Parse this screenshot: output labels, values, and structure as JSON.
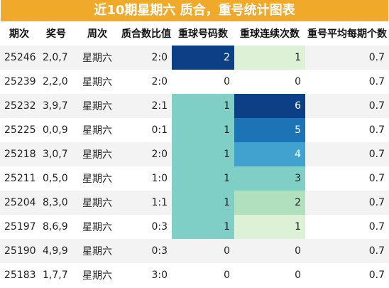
{
  "title": "近10期星期六 质合，重号统计图表",
  "headers": [
    "期次",
    "奖号",
    "周次",
    "质合数比值",
    "重球号码数",
    "重球连续次数",
    "重号平均每期个数"
  ],
  "rows": [
    {
      "period": "25246",
      "numbers": "2,0,7",
      "weekday": "星期六",
      "ratio": "2:0",
      "repeat": "2",
      "consecutive": "1",
      "avg": "0.7",
      "repeat_bg": "#0b3f86",
      "repeat_fg": "#ffffff",
      "cons_bg": "#dcf1d6",
      "cons_fg": "#222222"
    },
    {
      "period": "25239",
      "numbers": "2,2,0",
      "weekday": "星期六",
      "ratio": "2:0",
      "repeat": "0",
      "consecutive": "0",
      "avg": "0.7",
      "repeat_bg": "",
      "repeat_fg": "#222222",
      "cons_bg": "",
      "cons_fg": "#222222"
    },
    {
      "period": "25232",
      "numbers": "3,9,7",
      "weekday": "星期六",
      "ratio": "2:1",
      "repeat": "1",
      "consecutive": "6",
      "avg": "0.7",
      "repeat_bg": "#7fcfc6",
      "repeat_fg": "#222222",
      "cons_bg": "#0b3f86",
      "cons_fg": "#ffffff"
    },
    {
      "period": "25225",
      "numbers": "0,0,9",
      "weekday": "星期六",
      "ratio": "0:1",
      "repeat": "1",
      "consecutive": "5",
      "avg": "0.7",
      "repeat_bg": "#7fcfc6",
      "repeat_fg": "#222222",
      "cons_bg": "#1c73b6",
      "cons_fg": "#ffffff"
    },
    {
      "period": "25218",
      "numbers": "3,0,7",
      "weekday": "星期六",
      "ratio": "2:0",
      "repeat": "1",
      "consecutive": "4",
      "avg": "0.7",
      "repeat_bg": "#7fcfc6",
      "repeat_fg": "#222222",
      "cons_bg": "#41a2d0",
      "cons_fg": "#ffffff"
    },
    {
      "period": "25211",
      "numbers": "0,5,0",
      "weekday": "星期六",
      "ratio": "1:0",
      "repeat": "1",
      "consecutive": "3",
      "avg": "0.7",
      "repeat_bg": "#7fcfc6",
      "repeat_fg": "#222222",
      "cons_bg": "#7fcfc6",
      "cons_fg": "#222222"
    },
    {
      "period": "25204",
      "numbers": "8,3,0",
      "weekday": "星期六",
      "ratio": "1:1",
      "repeat": "1",
      "consecutive": "2",
      "avg": "0.7",
      "repeat_bg": "#7fcfc6",
      "repeat_fg": "#222222",
      "cons_bg": "#b1e0bf",
      "cons_fg": "#222222"
    },
    {
      "period": "25197",
      "numbers": "8,6,9",
      "weekday": "星期六",
      "ratio": "0:3",
      "repeat": "1",
      "consecutive": "1",
      "avg": "0.7",
      "repeat_bg": "#7fcfc6",
      "repeat_fg": "#222222",
      "cons_bg": "#dcf1d6",
      "cons_fg": "#222222"
    },
    {
      "period": "25190",
      "numbers": "4,9,9",
      "weekday": "星期六",
      "ratio": "0:3",
      "repeat": "0",
      "consecutive": "0",
      "avg": "0.7",
      "repeat_bg": "",
      "repeat_fg": "#222222",
      "cons_bg": "",
      "cons_fg": "#222222"
    },
    {
      "period": "25183",
      "numbers": "1,7,7",
      "weekday": "星期六",
      "ratio": "3:0",
      "repeat": "0",
      "consecutive": "0",
      "avg": "0.7",
      "repeat_bg": "",
      "repeat_fg": "#222222",
      "cons_bg": "",
      "cons_fg": "#222222"
    }
  ]
}
